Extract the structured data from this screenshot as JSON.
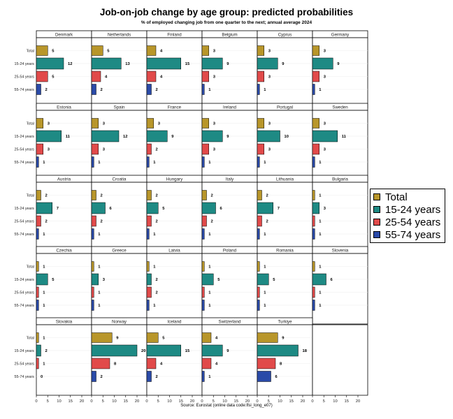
{
  "chart_data": {
    "type": "bar",
    "title": "Job-on-job change by age group: predicted probabilities",
    "subtitle": "% of employed changing job from one quarter to the next; annual average 2024",
    "source": "Source: Eurostat (online data code:lfsi_long_e07)",
    "categories": [
      "Total",
      "15-24 years",
      "25-54 years",
      "55-74 years"
    ],
    "colors": [
      "#b8962a",
      "#1e8a84",
      "#e14a4a",
      "#2a4aa8"
    ],
    "xlim": [
      0,
      20
    ],
    "xticks": [
      0,
      5,
      10,
      15,
      20
    ],
    "legend_position": "right",
    "panels": [
      {
        "name": "Denmark",
        "values": [
          5,
          12,
          5,
          2
        ]
      },
      {
        "name": "Netherlands",
        "values": [
          5,
          13,
          4,
          2
        ]
      },
      {
        "name": "Finland",
        "values": [
          4,
          15,
          4,
          2
        ]
      },
      {
        "name": "Belgium",
        "values": [
          3,
          9,
          3,
          1
        ]
      },
      {
        "name": "Cyprus",
        "values": [
          3,
          9,
          3,
          1
        ]
      },
      {
        "name": "Germany",
        "values": [
          3,
          9,
          3,
          1
        ]
      },
      {
        "name": "Estonia",
        "values": [
          3,
          11,
          3,
          1
        ]
      },
      {
        "name": "Spain",
        "values": [
          3,
          12,
          3,
          1
        ]
      },
      {
        "name": "France",
        "values": [
          3,
          9,
          2,
          1
        ]
      },
      {
        "name": "Ireland",
        "values": [
          3,
          9,
          3,
          1
        ]
      },
      {
        "name": "Portugal",
        "values": [
          3,
          10,
          3,
          1
        ]
      },
      {
        "name": "Sweden",
        "values": [
          3,
          11,
          3,
          1
        ]
      },
      {
        "name": "Austria",
        "values": [
          2,
          7,
          2,
          1
        ]
      },
      {
        "name": "Croatia",
        "values": [
          2,
          6,
          2,
          1
        ]
      },
      {
        "name": "Hungary",
        "values": [
          2,
          5,
          2,
          1
        ]
      },
      {
        "name": "Italy",
        "values": [
          2,
          6,
          2,
          1
        ]
      },
      {
        "name": "Lithuania",
        "values": [
          2,
          7,
          2,
          1
        ]
      },
      {
        "name": "Bulgaria",
        "values": [
          1,
          3,
          1,
          1
        ]
      },
      {
        "name": "Czechia",
        "values": [
          1,
          5,
          1,
          1
        ]
      },
      {
        "name": "Greece",
        "values": [
          1,
          3,
          1,
          1
        ]
      },
      {
        "name": "Latvia",
        "values": [
          1,
          2,
          2,
          1
        ]
      },
      {
        "name": "Poland",
        "values": [
          1,
          5,
          1,
          1
        ]
      },
      {
        "name": "Romania",
        "values": [
          1,
          5,
          1,
          1
        ]
      },
      {
        "name": "Slovenia",
        "values": [
          1,
          6,
          1,
          1
        ]
      },
      {
        "name": "Slovakia",
        "values": [
          1,
          2,
          1,
          0
        ]
      },
      {
        "name": "Norway",
        "values": [
          9,
          20,
          8,
          2
        ]
      },
      {
        "name": "Iceland",
        "values": [
          5,
          15,
          4,
          2
        ]
      },
      {
        "name": "Switzerland",
        "values": [
          4,
          9,
          4,
          1
        ]
      },
      {
        "name": "Turkiye",
        "values": [
          9,
          18,
          8,
          6
        ]
      }
    ]
  }
}
